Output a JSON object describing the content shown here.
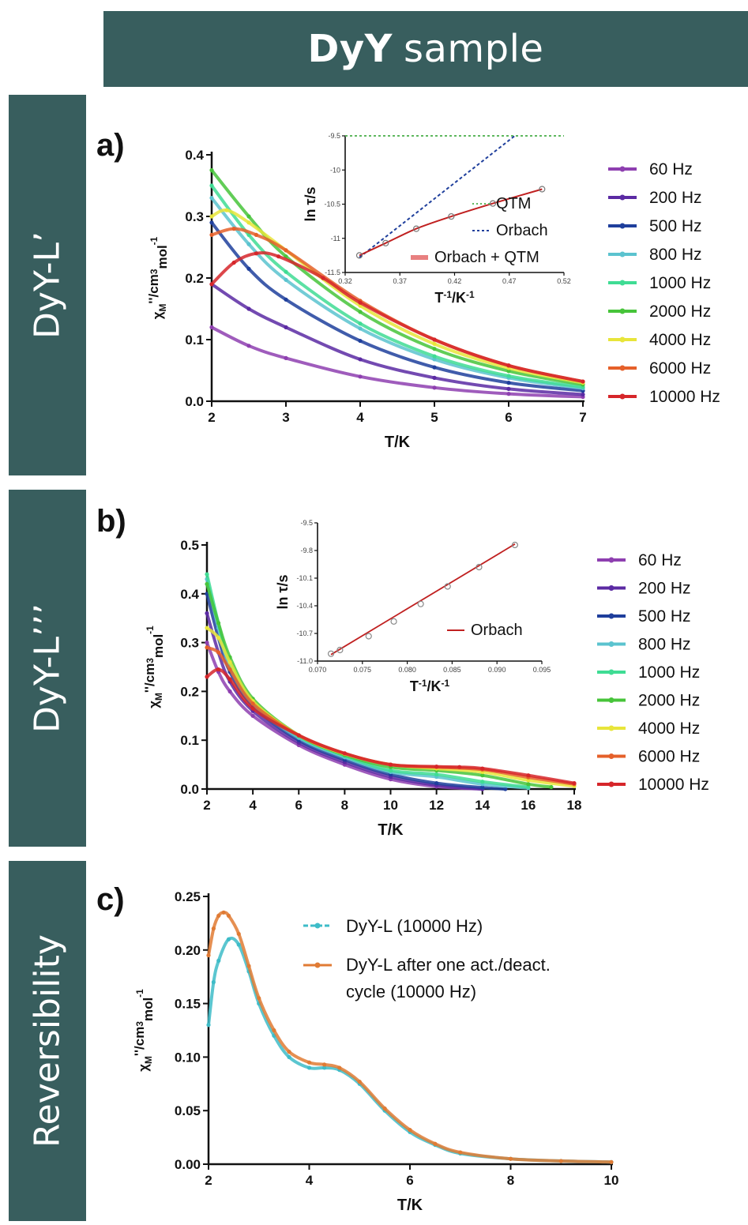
{
  "banner": {
    "bold": "DyY",
    "rest": "sample"
  },
  "sidebars": {
    "a": "DyY-L’",
    "b": "DyY-L’’’",
    "c": "Reversibility"
  },
  "colors": {
    "banner_bg": "#385e5e",
    "freq": [
      "#8e3fb0",
      "#5b2aa3",
      "#1f3f9c",
      "#5bc3cf",
      "#3fdc94",
      "#47c43a",
      "#e8e53a",
      "#e5602a",
      "#d6262a"
    ],
    "dyy_l": "#3ebcc8",
    "dyy_l_cycle": "#e07b34",
    "orbach": "#c02020",
    "qtm": "#5fb85f",
    "orbach_dash": "#1f3f9c"
  },
  "chart_data": [
    {
      "panel": "a)",
      "type": "line",
      "xlabel": "T/K",
      "ylabel": "χM''/cm3mol-1",
      "xlim": [
        2,
        7
      ],
      "ylim": [
        0,
        0.4
      ],
      "xticks": [
        "2",
        "3",
        "4",
        "5",
        "6",
        "7"
      ],
      "yticks": [
        "0.0",
        "0.1",
        "0.2",
        "0.3",
        "0.4"
      ],
      "legend": [
        "60 Hz",
        "200 Hz",
        "500 Hz",
        "800 Hz",
        "1000 Hz",
        "2000 Hz",
        "4000 Hz",
        "6000 Hz",
        "10000 Hz"
      ],
      "series": [
        {
          "name": "60 Hz",
          "x": [
            2,
            2.5,
            3,
            4,
            5,
            6,
            7
          ],
          "y": [
            0.12,
            0.09,
            0.07,
            0.04,
            0.022,
            0.012,
            0.007
          ]
        },
        {
          "name": "200 Hz",
          "x": [
            2,
            2.5,
            3,
            4,
            5,
            6,
            7
          ],
          "y": [
            0.19,
            0.15,
            0.12,
            0.068,
            0.038,
            0.02,
            0.011
          ]
        },
        {
          "name": "500 Hz",
          "x": [
            2,
            2.5,
            3,
            4,
            5,
            6,
            7
          ],
          "y": [
            0.29,
            0.215,
            0.165,
            0.098,
            0.055,
            0.03,
            0.017
          ]
        },
        {
          "name": "800 Hz",
          "x": [
            2,
            2.5,
            3,
            4,
            5,
            6,
            7
          ],
          "y": [
            0.33,
            0.255,
            0.197,
            0.118,
            0.068,
            0.038,
            0.021
          ]
        },
        {
          "name": "1000 Hz",
          "x": [
            2,
            2.5,
            3,
            4,
            5,
            6,
            7
          ],
          "y": [
            0.35,
            0.27,
            0.21,
            0.126,
            0.073,
            0.041,
            0.023
          ]
        },
        {
          "name": "2000 Hz",
          "x": [
            2,
            2.5,
            3,
            4,
            5,
            6,
            7
          ],
          "y": [
            0.375,
            0.3,
            0.235,
            0.145,
            0.085,
            0.049,
            0.027
          ]
        },
        {
          "name": "4000 Hz",
          "x": [
            2,
            2.2,
            2.5,
            3,
            4,
            5,
            6,
            7
          ],
          "y": [
            0.3,
            0.31,
            0.29,
            0.245,
            0.155,
            0.093,
            0.054,
            0.03
          ]
        },
        {
          "name": "6000 Hz",
          "x": [
            2,
            2.3,
            2.6,
            3,
            4,
            5,
            6,
            7
          ],
          "y": [
            0.27,
            0.28,
            0.27,
            0.245,
            0.163,
            0.1,
            0.058,
            0.032
          ]
        },
        {
          "name": "10000 Hz",
          "x": [
            2,
            2.3,
            2.6,
            2.9,
            3.5,
            4,
            5,
            6,
            7
          ],
          "y": [
            0.19,
            0.225,
            0.24,
            0.235,
            0.2,
            0.16,
            0.1,
            0.058,
            0.032
          ]
        }
      ],
      "inset": {
        "xlabel": "T-1/K-1",
        "ylabel": "ln τ/s",
        "xticks": [
          "0.32",
          "0.37",
          "0.42",
          "0.47",
          "0.52"
        ],
        "yticks": [
          "-9.5",
          "-10",
          "-10.5",
          "-11",
          "-11.5"
        ],
        "xlim": [
          0.32,
          0.52
        ],
        "ylim": [
          -11.5,
          -9.5
        ],
        "legend": [
          "QTM",
          "Orbach",
          "Orbach + QTM"
        ],
        "data_x": [
          0.333,
          0.357,
          0.385,
          0.417,
          0.455,
          0.5
        ],
        "data_y": [
          -11.25,
          -11.07,
          -10.86,
          -10.68,
          -10.49,
          -10.28
        ],
        "qtm_y": -9.5,
        "orbach_line": {
          "x": [
            0.333,
            0.475
          ],
          "y": [
            -11.28,
            -9.5
          ]
        }
      }
    },
    {
      "panel": "b)",
      "type": "line",
      "xlabel": "T/K",
      "ylabel": "χM''/cm3mol-1",
      "xlim": [
        2,
        18
      ],
      "ylim": [
        0,
        0.5
      ],
      "xticks": [
        "2",
        "4",
        "6",
        "8",
        "10",
        "12",
        "14",
        "16",
        "18"
      ],
      "yticks": [
        "0.0",
        "0.1",
        "0.2",
        "0.3",
        "0.4",
        "0.5"
      ],
      "legend": [
        "60 Hz",
        "200 Hz",
        "500 Hz",
        "800 Hz",
        "1000 Hz",
        "2000 Hz",
        "4000 Hz",
        "6000 Hz",
        "10000 Hz"
      ],
      "series": [
        {
          "name": "60 Hz",
          "x": [
            2,
            2.5,
            3,
            4,
            6,
            8,
            10,
            12,
            14
          ],
          "y": [
            0.3,
            0.24,
            0.2,
            0.15,
            0.09,
            0.05,
            0.02,
            0.005,
            0
          ]
        },
        {
          "name": "200 Hz",
          "x": [
            2,
            2.5,
            3,
            4,
            6,
            8,
            10,
            12,
            14
          ],
          "y": [
            0.36,
            0.28,
            0.22,
            0.16,
            0.095,
            0.055,
            0.025,
            0.008,
            0
          ]
        },
        {
          "name": "500 Hz",
          "x": [
            2,
            2.5,
            3,
            4,
            6,
            8,
            10,
            12,
            14,
            15
          ],
          "y": [
            0.4,
            0.31,
            0.24,
            0.17,
            0.1,
            0.06,
            0.03,
            0.012,
            0.003,
            0
          ]
        },
        {
          "name": "800 Hz",
          "x": [
            2,
            2.5,
            3,
            4,
            6,
            8,
            10,
            12,
            14,
            16
          ],
          "y": [
            0.43,
            0.33,
            0.25,
            0.175,
            0.105,
            0.065,
            0.035,
            0.025,
            0.01,
            0.002
          ]
        },
        {
          "name": "1000 Hz",
          "x": [
            2,
            2.5,
            3,
            4,
            6,
            8,
            10,
            12,
            14,
            16
          ],
          "y": [
            0.44,
            0.34,
            0.26,
            0.18,
            0.108,
            0.068,
            0.038,
            0.03,
            0.015,
            0.004
          ]
        },
        {
          "name": "2000 Hz",
          "x": [
            2,
            2.5,
            3,
            4,
            6,
            8,
            10,
            12,
            14,
            16,
            17
          ],
          "y": [
            0.42,
            0.34,
            0.27,
            0.185,
            0.11,
            0.07,
            0.045,
            0.038,
            0.028,
            0.01,
            0.004
          ]
        },
        {
          "name": "4000 Hz",
          "x": [
            2,
            2.5,
            3,
            4,
            6,
            8,
            10,
            12,
            14,
            16,
            18
          ],
          "y": [
            0.33,
            0.31,
            0.26,
            0.18,
            0.11,
            0.072,
            0.05,
            0.042,
            0.035,
            0.018,
            0.006
          ]
        },
        {
          "name": "6000 Hz",
          "x": [
            2,
            2.5,
            3,
            4,
            6,
            8,
            10,
            12,
            14,
            16,
            18
          ],
          "y": [
            0.29,
            0.28,
            0.245,
            0.175,
            0.11,
            0.073,
            0.05,
            0.045,
            0.04,
            0.024,
            0.01
          ]
        },
        {
          "name": "10000 Hz",
          "x": [
            2,
            2.5,
            3,
            4,
            6,
            8,
            10,
            12,
            13,
            14,
            16,
            18
          ],
          "y": [
            0.23,
            0.245,
            0.225,
            0.165,
            0.11,
            0.073,
            0.05,
            0.046,
            0.045,
            0.042,
            0.028,
            0.012
          ]
        }
      ],
      "inset": {
        "xlabel": "T-1/K-1",
        "ylabel": "ln τ/s",
        "xticks": [
          "0.070",
          "0.075",
          "0.080",
          "0.085",
          "0.090",
          "0.095"
        ],
        "yticks": [
          "-9.5",
          "-9.8",
          "-10.1",
          "-10.4",
          "-10.7",
          "-11.0"
        ],
        "xlim": [
          0.07,
          0.095
        ],
        "ylim": [
          -11.0,
          -9.5
        ],
        "legend": [
          "Orbach"
        ],
        "data_x": [
          0.0715,
          0.0725,
          0.0757,
          0.0785,
          0.0815,
          0.0845,
          0.088,
          0.092
        ],
        "data_y": [
          -10.92,
          -10.88,
          -10.73,
          -10.57,
          -10.38,
          -10.19,
          -9.98,
          -9.74
        ],
        "orbach_line": {
          "x": [
            0.0715,
            0.092
          ],
          "y": [
            -10.93,
            -9.73
          ]
        }
      }
    },
    {
      "panel": "c)",
      "type": "line",
      "xlabel": "T/K",
      "ylabel": "χM''/cm3mol-1",
      "xlim": [
        2,
        10
      ],
      "ylim": [
        0,
        0.25
      ],
      "xticks": [
        "2",
        "4",
        "6",
        "8",
        "10"
      ],
      "yticks": [
        "0.00",
        "0.05",
        "0.10",
        "0.15",
        "0.20",
        "0.25"
      ],
      "legend": [
        "DyY-L (10000 Hz)",
        "DyY-L after one act./deact. cycle (10000 Hz)"
      ],
      "series": [
        {
          "name": "DyY-L (10000 Hz)",
          "x": [
            2,
            2.1,
            2.2,
            2.4,
            2.6,
            2.8,
            3,
            3.3,
            3.6,
            4,
            4.3,
            4.6,
            5,
            5.5,
            6,
            6.5,
            7,
            8,
            9,
            10
          ],
          "y": [
            0.13,
            0.17,
            0.19,
            0.21,
            0.205,
            0.18,
            0.15,
            0.12,
            0.1,
            0.09,
            0.09,
            0.088,
            0.075,
            0.05,
            0.03,
            0.018,
            0.01,
            0.005,
            0.003,
            0.002
          ]
        },
        {
          "name": "DyY-L after one act./deact. cycle (10000 Hz)",
          "x": [
            2,
            2.1,
            2.2,
            2.3,
            2.4,
            2.6,
            2.8,
            3,
            3.3,
            3.6,
            4,
            4.3,
            4.6,
            5,
            5.5,
            6,
            6.5,
            7,
            8,
            9,
            10
          ],
          "y": [
            0.195,
            0.22,
            0.232,
            0.235,
            0.232,
            0.215,
            0.185,
            0.155,
            0.125,
            0.105,
            0.095,
            0.093,
            0.09,
            0.077,
            0.052,
            0.032,
            0.019,
            0.011,
            0.005,
            0.003,
            0.002
          ]
        }
      ]
    }
  ]
}
